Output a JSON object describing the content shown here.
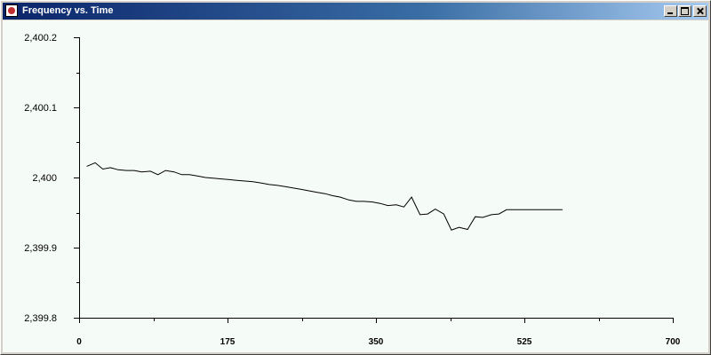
{
  "window": {
    "title": "Frequency vs. Time"
  },
  "icons": {
    "app": "java-cup-icon",
    "minimize": "minimize-icon",
    "maximize": "maximize-icon",
    "close": "close-icon"
  },
  "colors": {
    "plot_background": "#f5fbf7",
    "line": "#000000",
    "titlebar_start": "#0a246a",
    "titlebar_end": "#a6caf0"
  },
  "chart_data": {
    "type": "line",
    "title": "",
    "xlabel": "",
    "ylabel": "",
    "xlim": [
      0,
      700
    ],
    "ylim": [
      2399.8,
      2400.2
    ],
    "x_ticks": [
      0,
      175,
      350,
      525,
      700
    ],
    "x_tick_labels": [
      "0",
      "175",
      "350",
      "525",
      "700"
    ],
    "y_ticks": [
      2399.8,
      2399.9,
      2400.0,
      2400.1,
      2400.2
    ],
    "y_tick_labels": [
      "2,399.8",
      "2,399.9",
      "2,400",
      "2,400.1",
      "2,400.2"
    ],
    "grid": false,
    "legend": "none",
    "series": [
      {
        "x": [
          9,
          19,
          28,
          37,
          46,
          56,
          65,
          74,
          84,
          93,
          102,
          112,
          121,
          130,
          140,
          149,
          158,
          168,
          177,
          186,
          196,
          205,
          215,
          224,
          233,
          243,
          252,
          262,
          271,
          280,
          290,
          299,
          308,
          318,
          327,
          336,
          346,
          355,
          364,
          374,
          383,
          392,
          402,
          411,
          420,
          430,
          439,
          448,
          458,
          467,
          476,
          486,
          495,
          504,
          514,
          523,
          532,
          542,
          551,
          560,
          570
        ],
        "y": [
          2400.016,
          2400.021,
          2400.012,
          2400.014,
          2400.011,
          2400.01,
          2400.01,
          2400.008,
          2400.009,
          2400.004,
          2400.01,
          2400.008,
          2400.004,
          2400.004,
          2400.002,
          2400.0,
          2399.999,
          2399.998,
          2399.997,
          2399.996,
          2399.995,
          2399.994,
          2399.992,
          2399.99,
          2399.989,
          2399.987,
          2399.985,
          2399.983,
          2399.981,
          2399.979,
          2399.977,
          2399.974,
          2399.972,
          2399.968,
          2399.966,
          2399.966,
          2399.965,
          2399.963,
          2399.96,
          2399.961,
          2399.958,
          2399.972,
          2399.947,
          2399.948,
          2399.955,
          2399.948,
          2399.925,
          2399.929,
          2399.926,
          2399.944,
          2399.943,
          2399.947,
          2399.948,
          2399.954,
          2399.954,
          2399.954,
          2399.954,
          2399.954,
          2399.954,
          2399.954,
          2399.954
        ]
      }
    ]
  }
}
